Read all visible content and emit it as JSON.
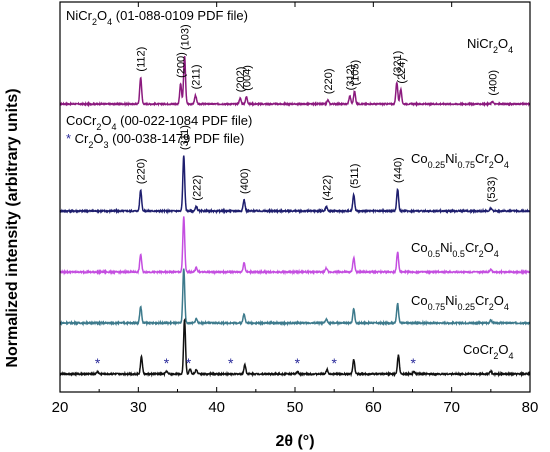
{
  "chart_data": {
    "type": "line",
    "xlabel": "2θ (°)",
    "ylabel": "Normalized intensity (arbitrary units)",
    "xlim": [
      20,
      80
    ],
    "xticks": [
      20,
      30,
      40,
      50,
      60,
      70,
      80
    ],
    "reference_labels": [
      {
        "id": "nicr",
        "segments": [
          {
            "t": "NiCr"
          },
          {
            "t": "2",
            "sub": true
          },
          {
            "t": "O"
          },
          {
            "t": "4",
            "sub": true
          },
          {
            "t": " (01-088-0109 PDF file)"
          }
        ]
      },
      {
        "id": "cocr",
        "segments": [
          {
            "t": "CoCr"
          },
          {
            "t": "2",
            "sub": true
          },
          {
            "t": "O"
          },
          {
            "t": "4",
            "sub": true
          },
          {
            "t": " (00-022-1084 PDF file)"
          }
        ]
      },
      {
        "id": "cr2o3",
        "segments": [
          {
            "t": "* ",
            "star": true
          },
          {
            "t": "Cr"
          },
          {
            "t": "2",
            "sub": true
          },
          {
            "t": "O"
          },
          {
            "t": "3",
            "sub": true
          },
          {
            "t": " (00-038-1479 PDF file)"
          }
        ]
      }
    ],
    "series": [
      {
        "name": "NiCr2O4",
        "label_segments": [
          {
            "t": "NiCr"
          },
          {
            "t": "2",
            "sub": true
          },
          {
            "t": "O"
          },
          {
            "t": "4",
            "sub": true
          }
        ],
        "color": "#8b1a7e",
        "peaks": [
          [
            30.3,
            0.55
          ],
          [
            35.4,
            0.42
          ],
          [
            35.9,
            1.0
          ],
          [
            37.3,
            0.18
          ],
          [
            43.0,
            0.12
          ],
          [
            43.8,
            0.15
          ],
          [
            54.2,
            0.08
          ],
          [
            57.0,
            0.16
          ],
          [
            57.6,
            0.26
          ],
          [
            63.0,
            0.45
          ],
          [
            63.5,
            0.3
          ],
          [
            75.2,
            0.05
          ]
        ],
        "hkl": [
          "(112)",
          "(200)",
          "(103)",
          "(211)",
          "(202)",
          "(004)",
          "(220)",
          "(312)",
          "(105)",
          "(321)",
          "(224)",
          "(400)"
        ]
      },
      {
        "name": "Co0.25Ni0.75Cr2O4",
        "label_segments": [
          {
            "t": "Co"
          },
          {
            "t": "0.25",
            "sub": true
          },
          {
            "t": "Ni"
          },
          {
            "t": "0.75",
            "sub": true
          },
          {
            "t": "Cr"
          },
          {
            "t": "2",
            "sub": true
          },
          {
            "t": "O"
          },
          {
            "t": "4",
            "sub": true
          }
        ],
        "color": "#1e1e6e",
        "peaks": [
          [
            30.3,
            0.38
          ],
          [
            35.8,
            1.0
          ],
          [
            37.4,
            0.08
          ],
          [
            43.5,
            0.2
          ],
          [
            54.0,
            0.08
          ],
          [
            57.5,
            0.3
          ],
          [
            63.1,
            0.4
          ],
          [
            75.0,
            0.05
          ]
        ],
        "hkl": [
          "(220)",
          "(311)",
          "(222)",
          "(400)",
          "(422)",
          "(511)",
          "(440)",
          "(533)"
        ]
      },
      {
        "name": "Co0.5Ni0.5Cr2O4",
        "label_segments": [
          {
            "t": "Co"
          },
          {
            "t": "0.5",
            "sub": true
          },
          {
            "t": "Ni"
          },
          {
            "t": "0.5",
            "sub": true
          },
          {
            "t": "Cr"
          },
          {
            "t": "2",
            "sub": true
          },
          {
            "t": "O"
          },
          {
            "t": "4",
            "sub": true
          }
        ],
        "color": "#c44ee0",
        "peaks": [
          [
            30.3,
            0.32
          ],
          [
            35.8,
            1.0
          ],
          [
            37.4,
            0.08
          ],
          [
            43.5,
            0.17
          ],
          [
            54.0,
            0.07
          ],
          [
            57.5,
            0.26
          ],
          [
            63.1,
            0.36
          ],
          [
            75.0,
            0.05
          ]
        ]
      },
      {
        "name": "Co0.75Ni0.25Cr2O4",
        "label_segments": [
          {
            "t": "Co"
          },
          {
            "t": "0.75",
            "sub": true
          },
          {
            "t": "Ni"
          },
          {
            "t": "0.25",
            "sub": true
          },
          {
            "t": "Cr"
          },
          {
            "t": "2",
            "sub": true
          },
          {
            "t": "O"
          },
          {
            "t": "4",
            "sub": true
          }
        ],
        "color": "#3d7a8c",
        "peaks": [
          [
            30.3,
            0.3
          ],
          [
            35.8,
            1.0
          ],
          [
            37.4,
            0.08
          ],
          [
            43.5,
            0.17
          ],
          [
            54.0,
            0.07
          ],
          [
            57.5,
            0.26
          ],
          [
            63.1,
            0.36
          ],
          [
            75.0,
            0.05
          ]
        ]
      },
      {
        "name": "CoCr2O4",
        "label_segments": [
          {
            "t": "CoCr"
          },
          {
            "t": "2",
            "sub": true
          },
          {
            "t": "O"
          },
          {
            "t": "4",
            "sub": true
          }
        ],
        "color": "#111111",
        "peaks": [
          [
            24.8,
            0.04
          ],
          [
            30.4,
            0.32
          ],
          [
            33.6,
            0.05
          ],
          [
            35.9,
            1.0
          ],
          [
            36.6,
            0.1
          ],
          [
            37.4,
            0.08
          ],
          [
            43.6,
            0.17
          ],
          [
            50.3,
            0.04
          ],
          [
            54.1,
            0.08
          ],
          [
            57.5,
            0.26
          ],
          [
            63.2,
            0.34
          ],
          [
            65.2,
            0.04
          ],
          [
            75.0,
            0.05
          ]
        ],
        "cr2o3_peaks": [
          24.8,
          33.6,
          36.4,
          41.8,
          50.3,
          55.0,
          65.1
        ]
      }
    ]
  }
}
